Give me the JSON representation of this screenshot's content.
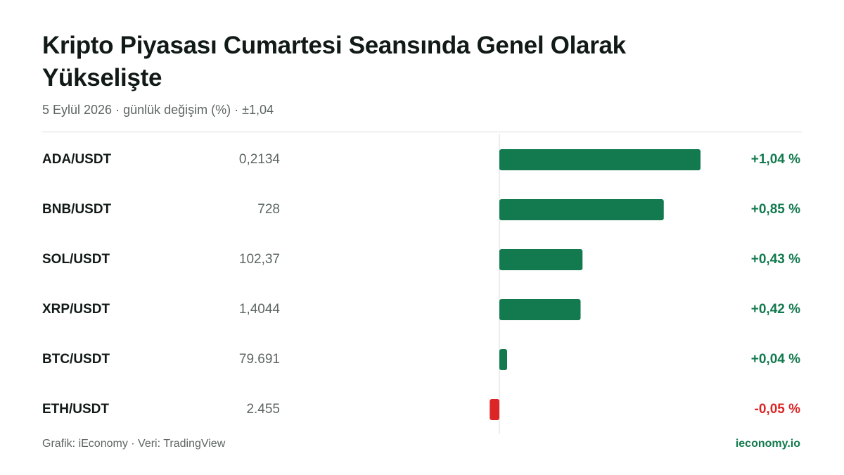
{
  "chart_data": {
    "type": "bar",
    "orientation": "horizontal",
    "title": "Kripto Piyasası Cumartesi Seansında Genel Olarak Yükselişte",
    "subtitle": "5 Eylül 2026 · günlük değişim (%) · ±1,04",
    "categories": [
      "ADA/USDT",
      "BNB/USDT",
      "SOL/USDT",
      "XRP/USDT",
      "BTC/USDT",
      "ETH/USDT"
    ],
    "prices": [
      "0,2134",
      "728",
      "102,37",
      "1,4044",
      "79.691",
      "2.455"
    ],
    "values": [
      1.04,
      0.85,
      0.43,
      0.42,
      0.04,
      -0.05
    ],
    "value_labels": [
      "+1,04 %",
      "+0,85 %",
      "+0,43 %",
      "+0,42 %",
      "+0,04 %",
      "-0,05 %"
    ],
    "color": "#127a4e",
    "negative_color": "#dc2626",
    "xlim": [
      -1.04,
      1.04
    ],
    "source": "Grafik: iEconomy · Veri: TradingView",
    "brand": "ieconomy.io"
  }
}
